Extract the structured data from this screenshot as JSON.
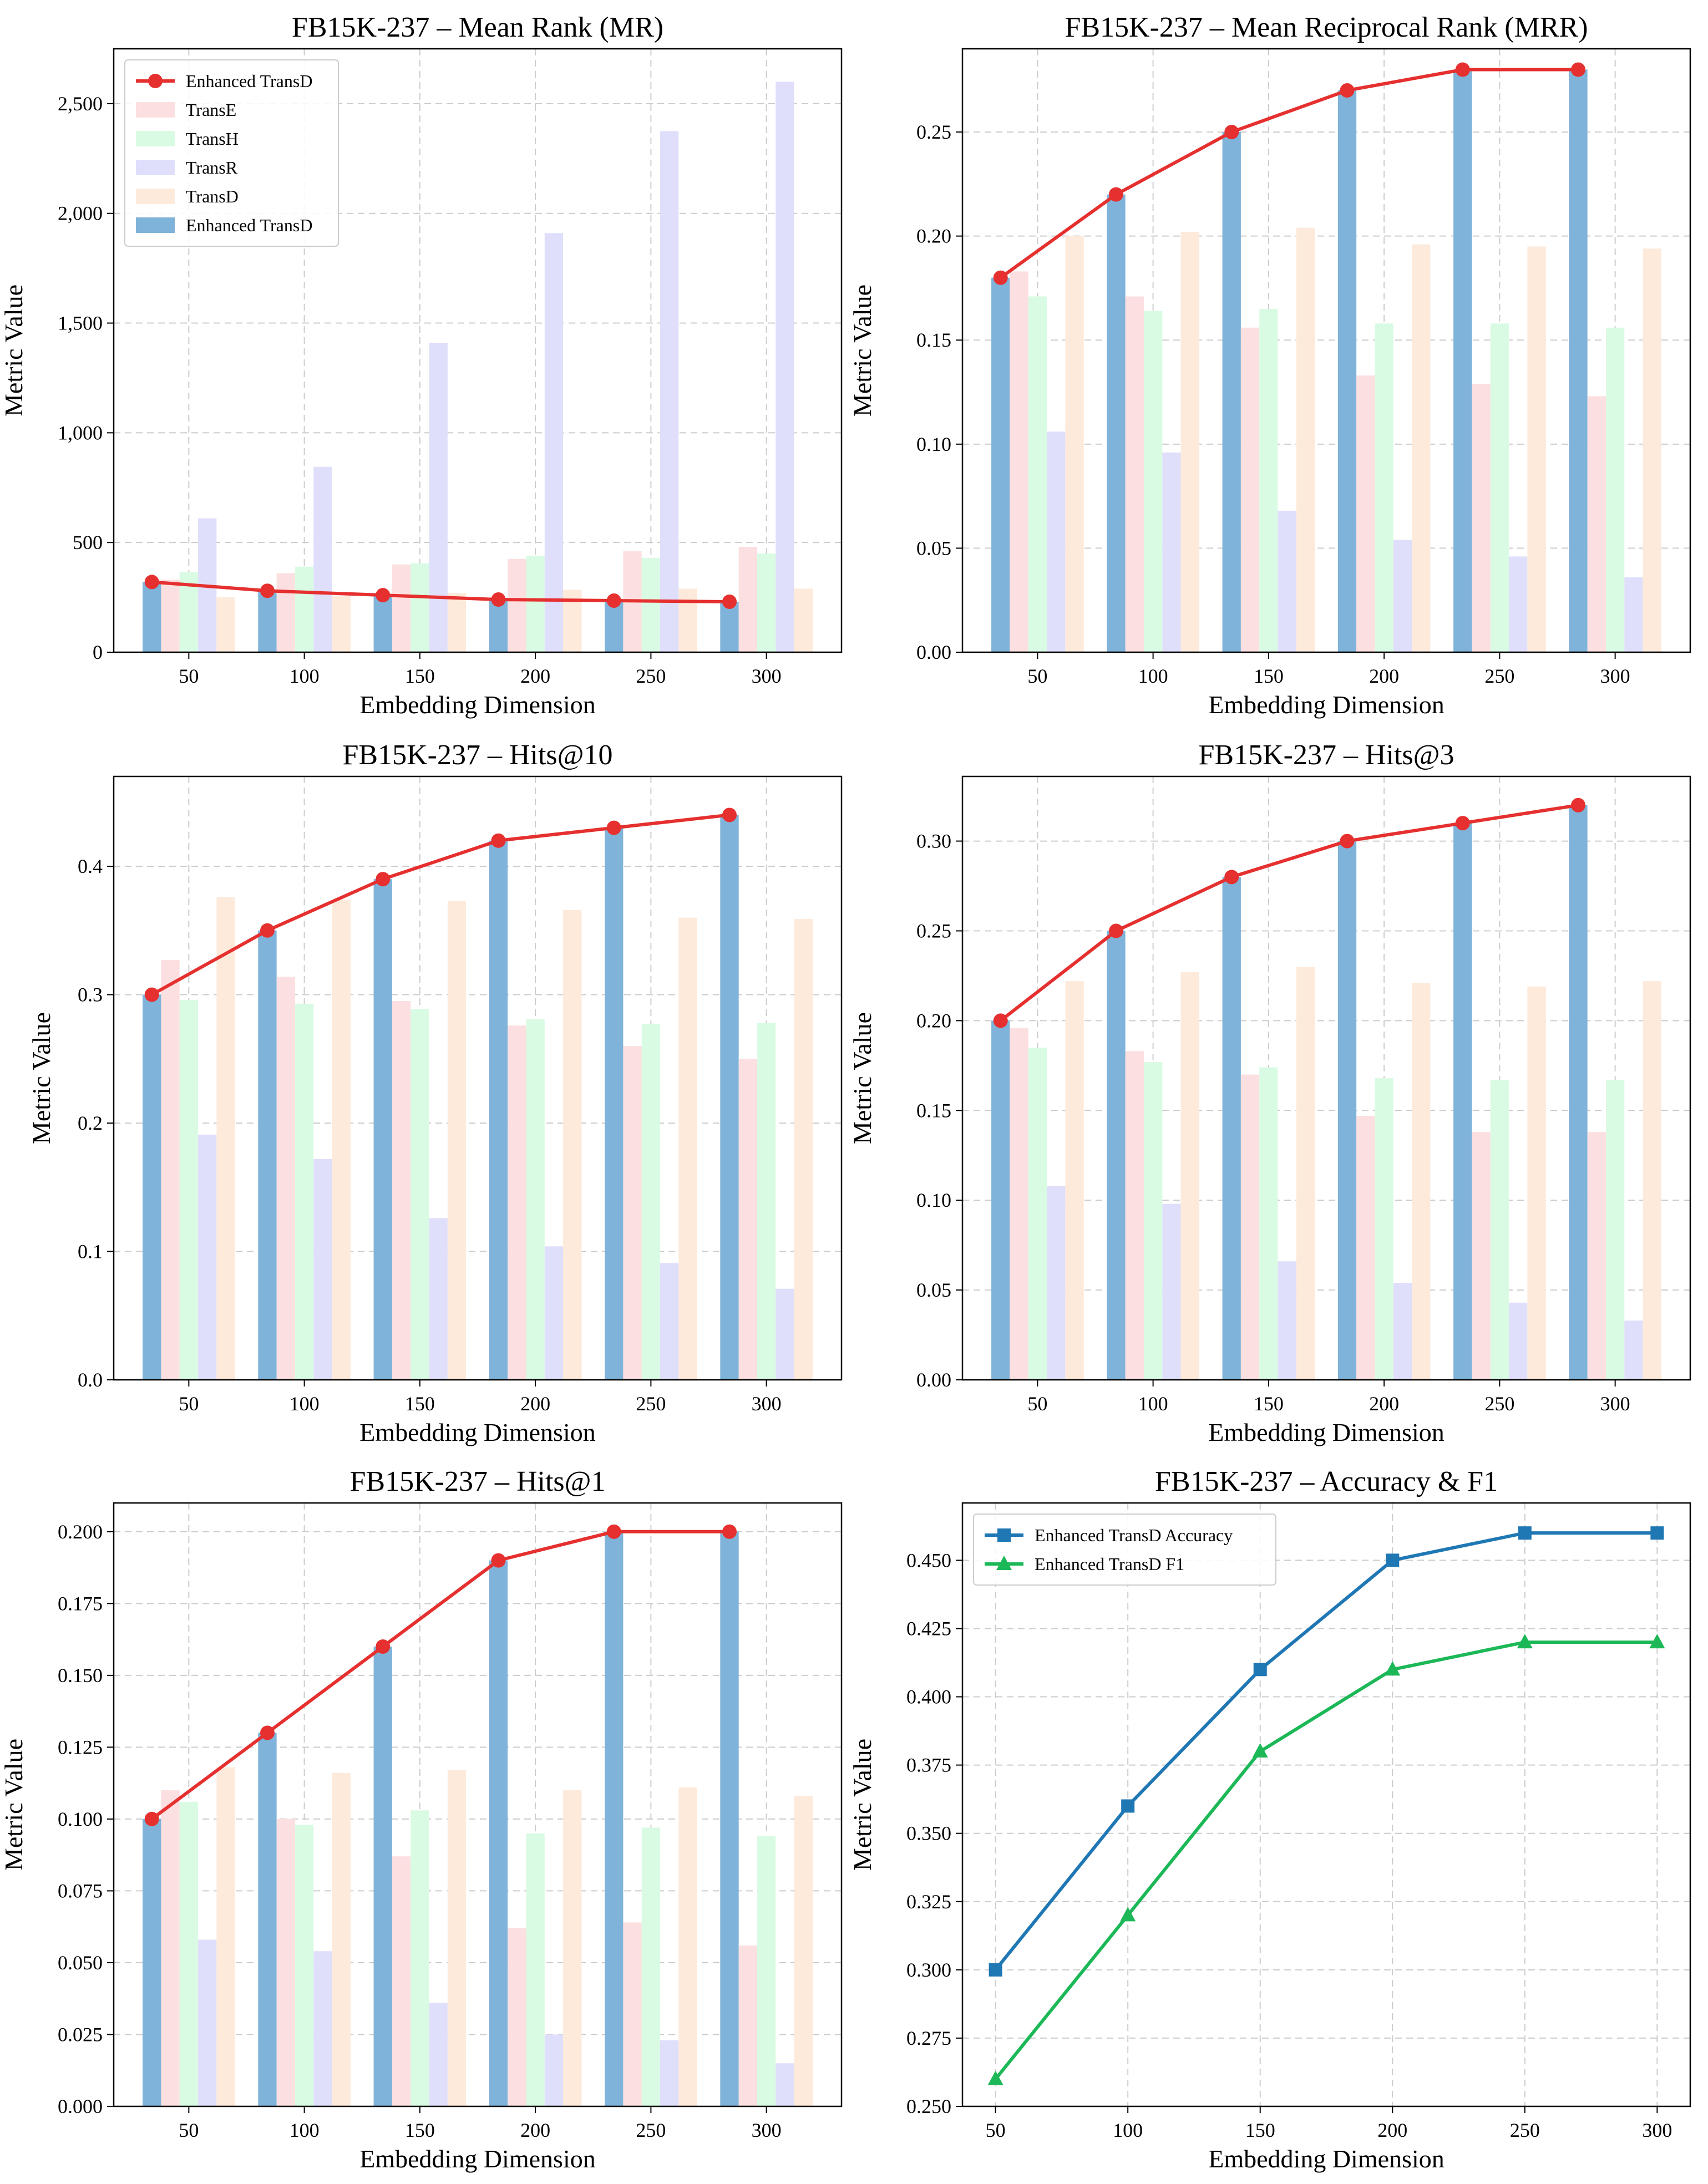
{
  "colors": {
    "enhanced_bar": "#7fb3d9",
    "transe": "#fcdfe0",
    "transh": "#dafbe3",
    "transr": "#dfdffb",
    "transd": "#fdeadb",
    "enhanced_line": "#e5302f",
    "accuracy_line": "#1f77b4",
    "f1_line": "#1cb857",
    "grid": "#cccccc",
    "axis": "#000000"
  },
  "chart_data": [
    {
      "id": "mr",
      "type": "bar",
      "title": "FB15K-237 – Mean Rank (MR)",
      "xlabel": "Embedding Dimension",
      "ylabel": "Metric Value",
      "categories": [
        "50",
        "100",
        "150",
        "200",
        "250",
        "300"
      ],
      "ylim": [
        0,
        2750
      ],
      "yticks": [
        0,
        500,
        1000,
        1500,
        2000,
        2500
      ],
      "ytick_labels": [
        "0",
        "500",
        "1,000",
        "1,500",
        "2,000",
        "2,500"
      ],
      "series": [
        {
          "name": "Enhanced TransD",
          "values": [
            320,
            280,
            260,
            240,
            235,
            230
          ]
        },
        {
          "name": "TransE",
          "values": [
            330,
            360,
            400,
            425,
            460,
            480
          ]
        },
        {
          "name": "TransH",
          "values": [
            365,
            390,
            405,
            440,
            430,
            450
          ]
        },
        {
          "name": "TransR",
          "values": [
            610,
            845,
            1410,
            1910,
            2375,
            2600
          ]
        },
        {
          "name": "TransD",
          "values": [
            250,
            255,
            270,
            285,
            290,
            290
          ]
        }
      ],
      "line": {
        "name": "Enhanced TransD",
        "values": [
          320,
          280,
          260,
          240,
          235,
          230
        ]
      },
      "legend": {
        "placement": "top-left",
        "entries": [
          {
            "label": "Enhanced TransD",
            "kind": "line"
          },
          {
            "label": "TransE",
            "kind": "bar",
            "series": 1
          },
          {
            "label": "TransH",
            "kind": "bar",
            "series": 2
          },
          {
            "label": "TransR",
            "kind": "bar",
            "series": 3
          },
          {
            "label": "TransD",
            "kind": "bar",
            "series": 4
          },
          {
            "label": "Enhanced TransD",
            "kind": "bar",
            "series": 0
          }
        ]
      },
      "grid": true
    },
    {
      "id": "mrr",
      "type": "bar",
      "title": "FB15K-237 – Mean Reciprocal Rank (MRR)",
      "xlabel": "Embedding Dimension",
      "ylabel": "Metric Value",
      "categories": [
        "50",
        "100",
        "150",
        "200",
        "250",
        "300"
      ],
      "ylim": [
        0,
        0.29
      ],
      "yticks": [
        0,
        0.05,
        0.1,
        0.15,
        0.2,
        0.25
      ],
      "ytick_labels": [
        "0.00",
        "0.05",
        "0.10",
        "0.15",
        "0.20",
        "0.25"
      ],
      "series": [
        {
          "name": "Enhanced TransD",
          "values": [
            0.18,
            0.22,
            0.25,
            0.27,
            0.28,
            0.28
          ]
        },
        {
          "name": "TransE",
          "values": [
            0.183,
            0.171,
            0.156,
            0.133,
            0.129,
            0.123
          ]
        },
        {
          "name": "TransH",
          "values": [
            0.171,
            0.164,
            0.165,
            0.158,
            0.158,
            0.156
          ]
        },
        {
          "name": "TransR",
          "values": [
            0.106,
            0.096,
            0.068,
            0.054,
            0.046,
            0.036
          ]
        },
        {
          "name": "TransD",
          "values": [
            0.2,
            0.202,
            0.204,
            0.196,
            0.195,
            0.194
          ]
        }
      ],
      "line": {
        "name": "Enhanced TransD",
        "values": [
          0.18,
          0.22,
          0.25,
          0.27,
          0.28,
          0.28
        ]
      },
      "grid": true
    },
    {
      "id": "hits10",
      "type": "bar",
      "title": "FB15K-237 – Hits@10",
      "xlabel": "Embedding Dimension",
      "ylabel": "Metric Value",
      "categories": [
        "50",
        "100",
        "150",
        "200",
        "250",
        "300"
      ],
      "ylim": [
        0,
        0.47
      ],
      "yticks": [
        0,
        0.1,
        0.2,
        0.3,
        0.4
      ],
      "ytick_labels": [
        "0.0",
        "0.1",
        "0.2",
        "0.3",
        "0.4"
      ],
      "series": [
        {
          "name": "Enhanced TransD",
          "values": [
            0.3,
            0.35,
            0.39,
            0.42,
            0.43,
            0.44
          ]
        },
        {
          "name": "TransE",
          "values": [
            0.327,
            0.314,
            0.295,
            0.276,
            0.26,
            0.25
          ]
        },
        {
          "name": "TransH",
          "values": [
            0.296,
            0.293,
            0.289,
            0.281,
            0.277,
            0.278
          ]
        },
        {
          "name": "TransR",
          "values": [
            0.191,
            0.172,
            0.126,
            0.104,
            0.091,
            0.071
          ]
        },
        {
          "name": "TransD",
          "values": [
            0.376,
            0.374,
            0.373,
            0.366,
            0.36,
            0.359
          ]
        }
      ],
      "line": {
        "name": "Enhanced TransD",
        "values": [
          0.3,
          0.35,
          0.39,
          0.42,
          0.43,
          0.44
        ]
      },
      "grid": true
    },
    {
      "id": "hits3",
      "type": "bar",
      "title": "FB15K-237 – Hits@3",
      "xlabel": "Embedding Dimension",
      "ylabel": "Metric Value",
      "categories": [
        "50",
        "100",
        "150",
        "200",
        "250",
        "300"
      ],
      "ylim": [
        0,
        0.336
      ],
      "yticks": [
        0,
        0.05,
        0.1,
        0.15,
        0.2,
        0.25,
        0.3
      ],
      "ytick_labels": [
        "0.00",
        "0.05",
        "0.10",
        "0.15",
        "0.20",
        "0.25",
        "0.30"
      ],
      "series": [
        {
          "name": "Enhanced TransD",
          "values": [
            0.2,
            0.25,
            0.28,
            0.3,
            0.31,
            0.32
          ]
        },
        {
          "name": "TransE",
          "values": [
            0.196,
            0.183,
            0.17,
            0.147,
            0.138,
            0.138
          ]
        },
        {
          "name": "TransH",
          "values": [
            0.185,
            0.177,
            0.174,
            0.168,
            0.167,
            0.167
          ]
        },
        {
          "name": "TransR",
          "values": [
            0.108,
            0.098,
            0.066,
            0.054,
            0.043,
            0.033
          ]
        },
        {
          "name": "TransD",
          "values": [
            0.222,
            0.227,
            0.23,
            0.221,
            0.219,
            0.222
          ]
        }
      ],
      "line": {
        "name": "Enhanced TransD",
        "values": [
          0.2,
          0.25,
          0.28,
          0.3,
          0.31,
          0.32
        ]
      },
      "grid": true
    },
    {
      "id": "hits1",
      "type": "bar",
      "title": "FB15K-237 – Hits@1",
      "xlabel": "Embedding Dimension",
      "ylabel": "Metric Value",
      "categories": [
        "50",
        "100",
        "150",
        "200",
        "250",
        "300"
      ],
      "ylim": [
        0,
        0.21
      ],
      "yticks": [
        0,
        0.025,
        0.05,
        0.075,
        0.1,
        0.125,
        0.15,
        0.175,
        0.2
      ],
      "ytick_labels": [
        "0.000",
        "0.025",
        "0.050",
        "0.075",
        "0.100",
        "0.125",
        "0.150",
        "0.175",
        "0.200"
      ],
      "series": [
        {
          "name": "Enhanced TransD",
          "values": [
            0.1,
            0.13,
            0.16,
            0.19,
            0.2,
            0.2
          ]
        },
        {
          "name": "TransE",
          "values": [
            0.11,
            0.1,
            0.087,
            0.062,
            0.064,
            0.056
          ]
        },
        {
          "name": "TransH",
          "values": [
            0.106,
            0.098,
            0.103,
            0.095,
            0.097,
            0.094
          ]
        },
        {
          "name": "TransR",
          "values": [
            0.058,
            0.054,
            0.036,
            0.025,
            0.023,
            0.015
          ]
        },
        {
          "name": "TransD",
          "values": [
            0.118,
            0.116,
            0.117,
            0.11,
            0.111,
            0.108
          ]
        }
      ],
      "line": {
        "name": "Enhanced TransD",
        "values": [
          0.1,
          0.13,
          0.16,
          0.19,
          0.2,
          0.2
        ]
      },
      "grid": true
    },
    {
      "id": "accf1",
      "type": "line",
      "title": "FB15K-237 – Accuracy & F1",
      "xlabel": "Embedding Dimension",
      "ylabel": "Metric Value",
      "x": [
        50,
        100,
        150,
        200,
        250,
        300
      ],
      "xlim": [
        37.5,
        312.5
      ],
      "ylim": [
        0.25,
        0.471
      ],
      "yticks": [
        0.25,
        0.275,
        0.3,
        0.325,
        0.35,
        0.375,
        0.4,
        0.425,
        0.45
      ],
      "ytick_labels": [
        "0.250",
        "0.275",
        "0.300",
        "0.325",
        "0.350",
        "0.375",
        "0.400",
        "0.425",
        "0.450"
      ],
      "xticks": [
        50,
        100,
        150,
        200,
        250,
        300
      ],
      "series": [
        {
          "name": "Enhanced TransD Accuracy",
          "marker": "square",
          "values": [
            0.3,
            0.36,
            0.41,
            0.45,
            0.46,
            0.46
          ]
        },
        {
          "name": "Enhanced TransD F1",
          "marker": "triangle",
          "values": [
            0.26,
            0.32,
            0.38,
            0.41,
            0.42,
            0.42
          ]
        }
      ],
      "legend": {
        "placement": "top-left",
        "entries": [
          {
            "label": "Enhanced TransD Accuracy",
            "kind": "line",
            "series": 0
          },
          {
            "label": "Enhanced TransD F1",
            "kind": "line",
            "series": 1
          }
        ]
      },
      "grid": true
    }
  ]
}
